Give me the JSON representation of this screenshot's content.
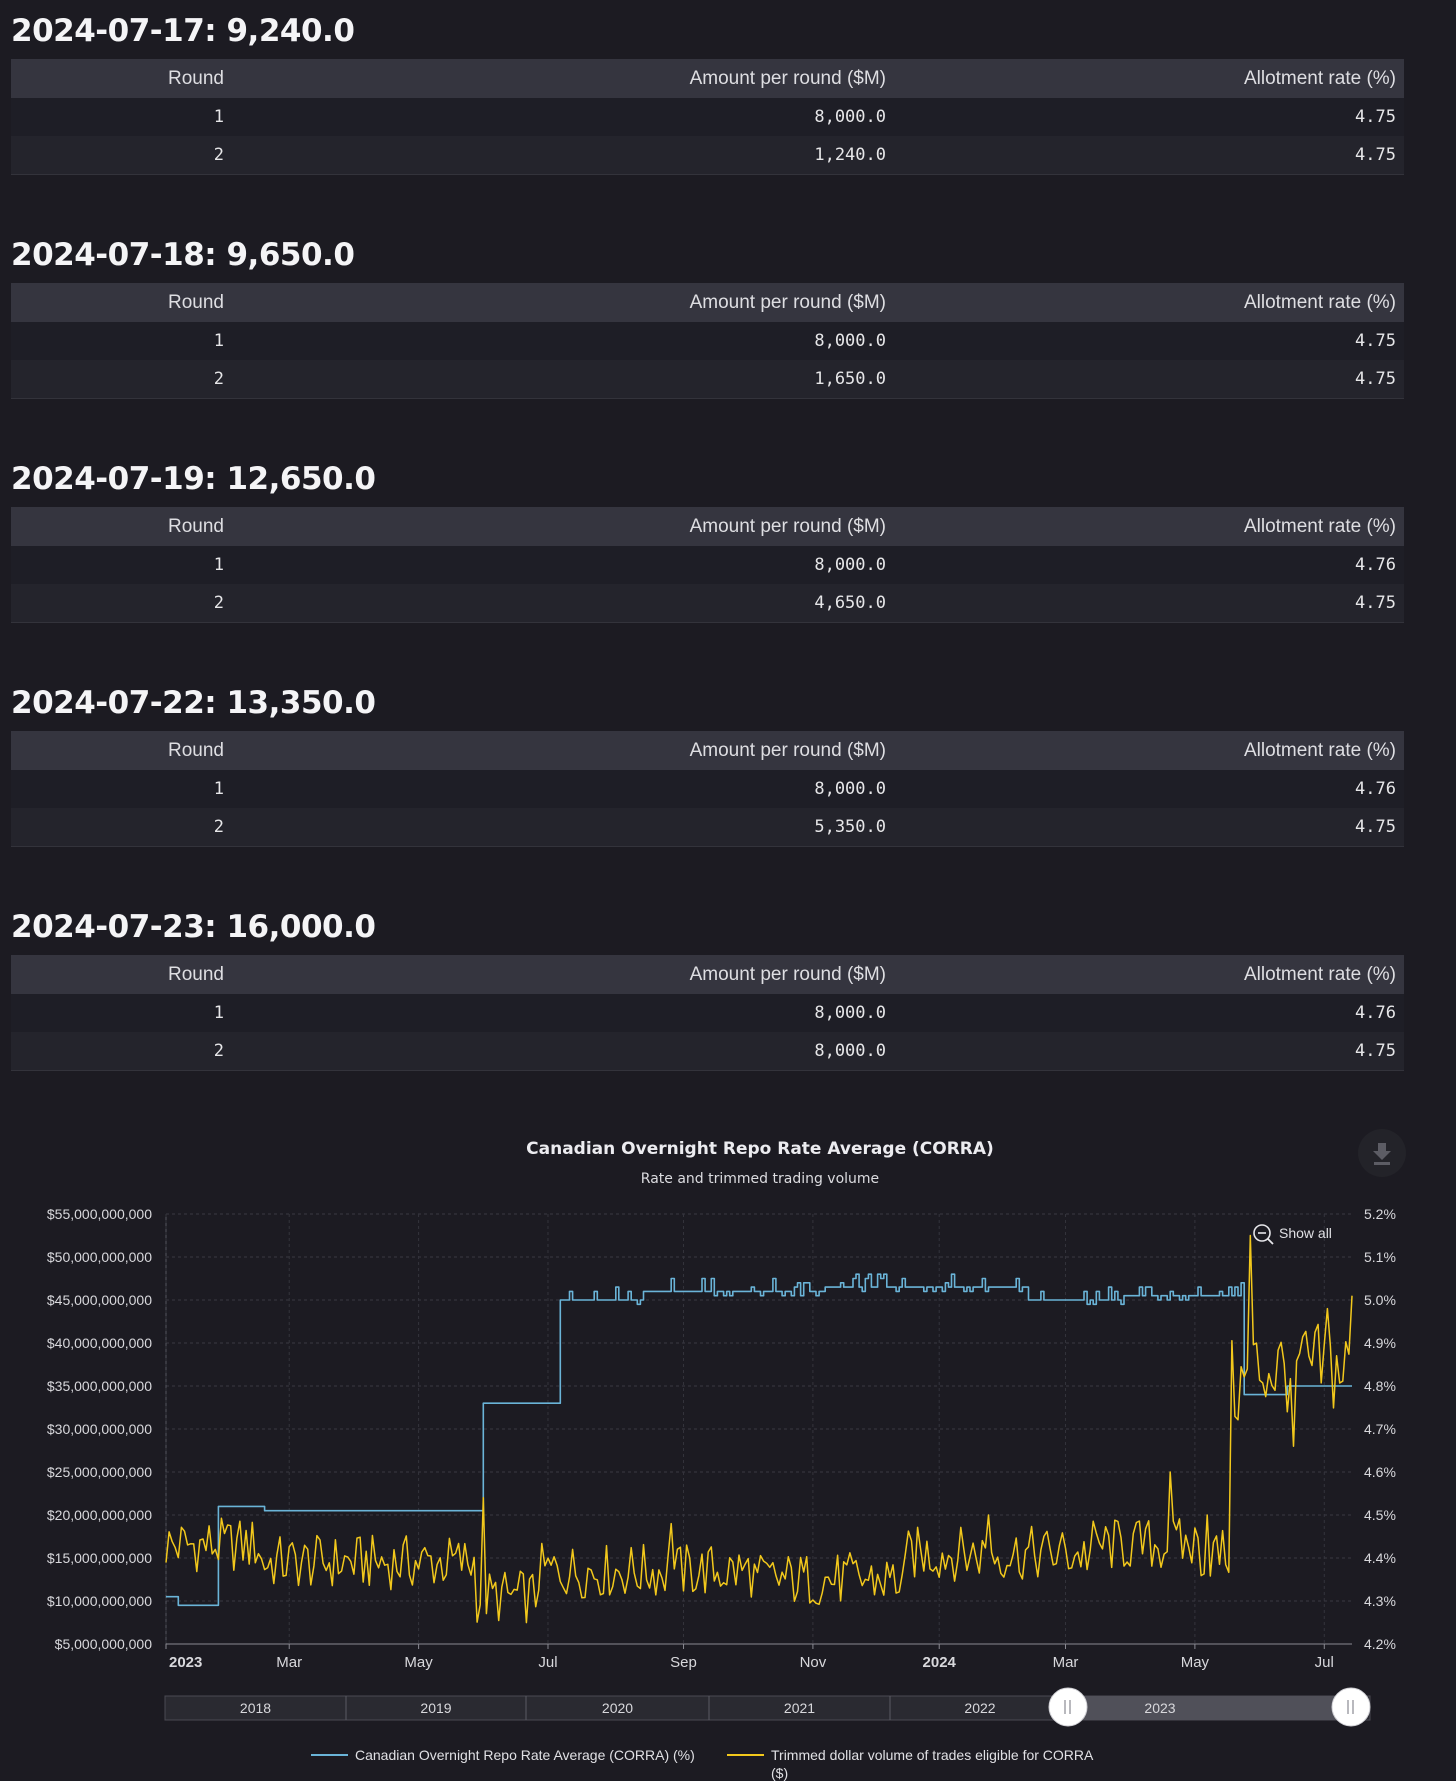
{
  "tables": [
    {
      "heading": "2024-07-17: 9,240.0",
      "columns": [
        "Round",
        "Amount per round ($M)",
        "Allotment rate (%)"
      ],
      "rows": [
        [
          "1",
          "8,000.0",
          "4.75"
        ],
        [
          "2",
          "1,240.0",
          "4.75"
        ]
      ]
    },
    {
      "heading": "2024-07-18: 9,650.0",
      "columns": [
        "Round",
        "Amount per round ($M)",
        "Allotment rate (%)"
      ],
      "rows": [
        [
          "1",
          "8,000.0",
          "4.75"
        ],
        [
          "2",
          "1,650.0",
          "4.75"
        ]
      ]
    },
    {
      "heading": "2024-07-19: 12,650.0",
      "columns": [
        "Round",
        "Amount per round ($M)",
        "Allotment rate (%)"
      ],
      "rows": [
        [
          "1",
          "8,000.0",
          "4.76"
        ],
        [
          "2",
          "4,650.0",
          "4.75"
        ]
      ]
    },
    {
      "heading": "2024-07-22: 13,350.0",
      "columns": [
        "Round",
        "Amount per round ($M)",
        "Allotment rate (%)"
      ],
      "rows": [
        [
          "1",
          "8,000.0",
          "4.76"
        ],
        [
          "2",
          "5,350.0",
          "4.75"
        ]
      ]
    },
    {
      "heading": "2024-07-23: 16,000.0",
      "columns": [
        "Round",
        "Amount per round ($M)",
        "Allotment rate (%)"
      ],
      "rows": [
        [
          "1",
          "8,000.0",
          "4.76"
        ],
        [
          "2",
          "8,000.0",
          "4.75"
        ]
      ]
    }
  ],
  "chart_data": {
    "type": "line",
    "title": "Canadian Overnight Repo Rate Average (CORRA)",
    "subtitle": "Rate and trimmed trading volume",
    "show_all_label": "Show all",
    "x_ticks": [
      {
        "label": "2023",
        "bold": true,
        "index": 0
      },
      {
        "label": "Mar",
        "bold": false,
        "index": 40
      },
      {
        "label": "May",
        "bold": false,
        "index": 82
      },
      {
        "label": "Jul",
        "bold": false,
        "index": 124
      },
      {
        "label": "Sep",
        "bold": false,
        "index": 168
      },
      {
        "label": "Nov",
        "bold": false,
        "index": 210
      },
      {
        "label": "2024",
        "bold": true,
        "index": 251
      },
      {
        "label": "Mar",
        "bold": false,
        "index": 292
      },
      {
        "label": "May",
        "bold": false,
        "index": 334
      },
      {
        "label": "Jul",
        "bold": false,
        "index": 376
      }
    ],
    "y_left": {
      "min": 5000000000,
      "max": 55000000000,
      "ticks": [
        "$5,000,000,000",
        "$10,000,000,000",
        "$15,000,000,000",
        "$20,000,000,000",
        "$25,000,000,000",
        "$30,000,000,000",
        "$35,000,000,000",
        "$40,000,000,000",
        "$45,000,000,000",
        "$50,000,000,000",
        "$55,000,000,000"
      ]
    },
    "y_right": {
      "min": 4.2,
      "max": 5.2,
      "ticks": [
        "4.2%",
        "4.3%",
        "4.4%",
        "4.5%",
        "4.6%",
        "4.7%",
        "4.8%",
        "4.9%",
        "5.0%",
        "5.1%",
        "5.2%"
      ]
    },
    "navigator_labels": [
      "2018",
      "2019",
      "2020",
      "2021",
      "2022",
      "2023"
    ],
    "series": [
      {
        "name": "Canadian Overnight Repo Rate Average (CORRA) (%)",
        "axis": "right",
        "color": "#6ab4d8",
        "segments": [
          {
            "start": 0,
            "end": 3,
            "value": 4.31
          },
          {
            "start": 4,
            "end": 16,
            "value": 4.29
          },
          {
            "start": 17,
            "end": 31,
            "value": 4.52
          },
          {
            "start": 32,
            "end": 102,
            "value": 4.51
          },
          {
            "start": 103,
            "end": 127,
            "value": 4.76
          },
          {
            "start": 128,
            "end": 154,
            "value": 5.0
          },
          {
            "start": 155,
            "end": 213,
            "value": 5.02
          },
          {
            "start": 214,
            "end": 279,
            "value": 5.03
          },
          {
            "start": 280,
            "end": 310,
            "value": 5.0
          },
          {
            "start": 311,
            "end": 349,
            "value": 5.01
          },
          {
            "start": 350,
            "end": 363,
            "value": 4.78
          },
          {
            "start": 364,
            "end": 385,
            "value": 4.8
          }
        ]
      },
      {
        "name": "Trimmed dollar volume of trades eligible for CORRA ($)",
        "axis": "left",
        "color": "#f2c81c",
        "segments": [
          {
            "start": 0,
            "end": 30,
            "value": 16500000000
          },
          {
            "start": 31,
            "end": 100,
            "value": 14500000000
          },
          {
            "start": 101,
            "end": 120,
            "value": 10500000000
          },
          {
            "start": 121,
            "end": 190,
            "value": 13500000000
          },
          {
            "start": 191,
            "end": 240,
            "value": 12500000000
          },
          {
            "start": 241,
            "end": 300,
            "value": 15500000000
          },
          {
            "start": 301,
            "end": 335,
            "value": 16500000000
          },
          {
            "start": 336,
            "end": 345,
            "value": 15500000000
          },
          {
            "start": 346,
            "end": 352,
            "value": 35000000000
          },
          {
            "start": 353,
            "end": 385,
            "value": 37000000000
          }
        ],
        "spikes": [
          {
            "index": 103,
            "value": 22000000000
          },
          {
            "index": 164,
            "value": 19000000000
          },
          {
            "index": 267,
            "value": 20000000000
          },
          {
            "index": 326,
            "value": 25000000000
          },
          {
            "index": 338,
            "value": 20000000000
          },
          {
            "index": 352,
            "value": 52500000000
          },
          {
            "index": 366,
            "value": 28000000000
          },
          {
            "index": 377,
            "value": 44000000000
          },
          {
            "index": 385,
            "value": 45500000000
          }
        ]
      }
    ]
  }
}
